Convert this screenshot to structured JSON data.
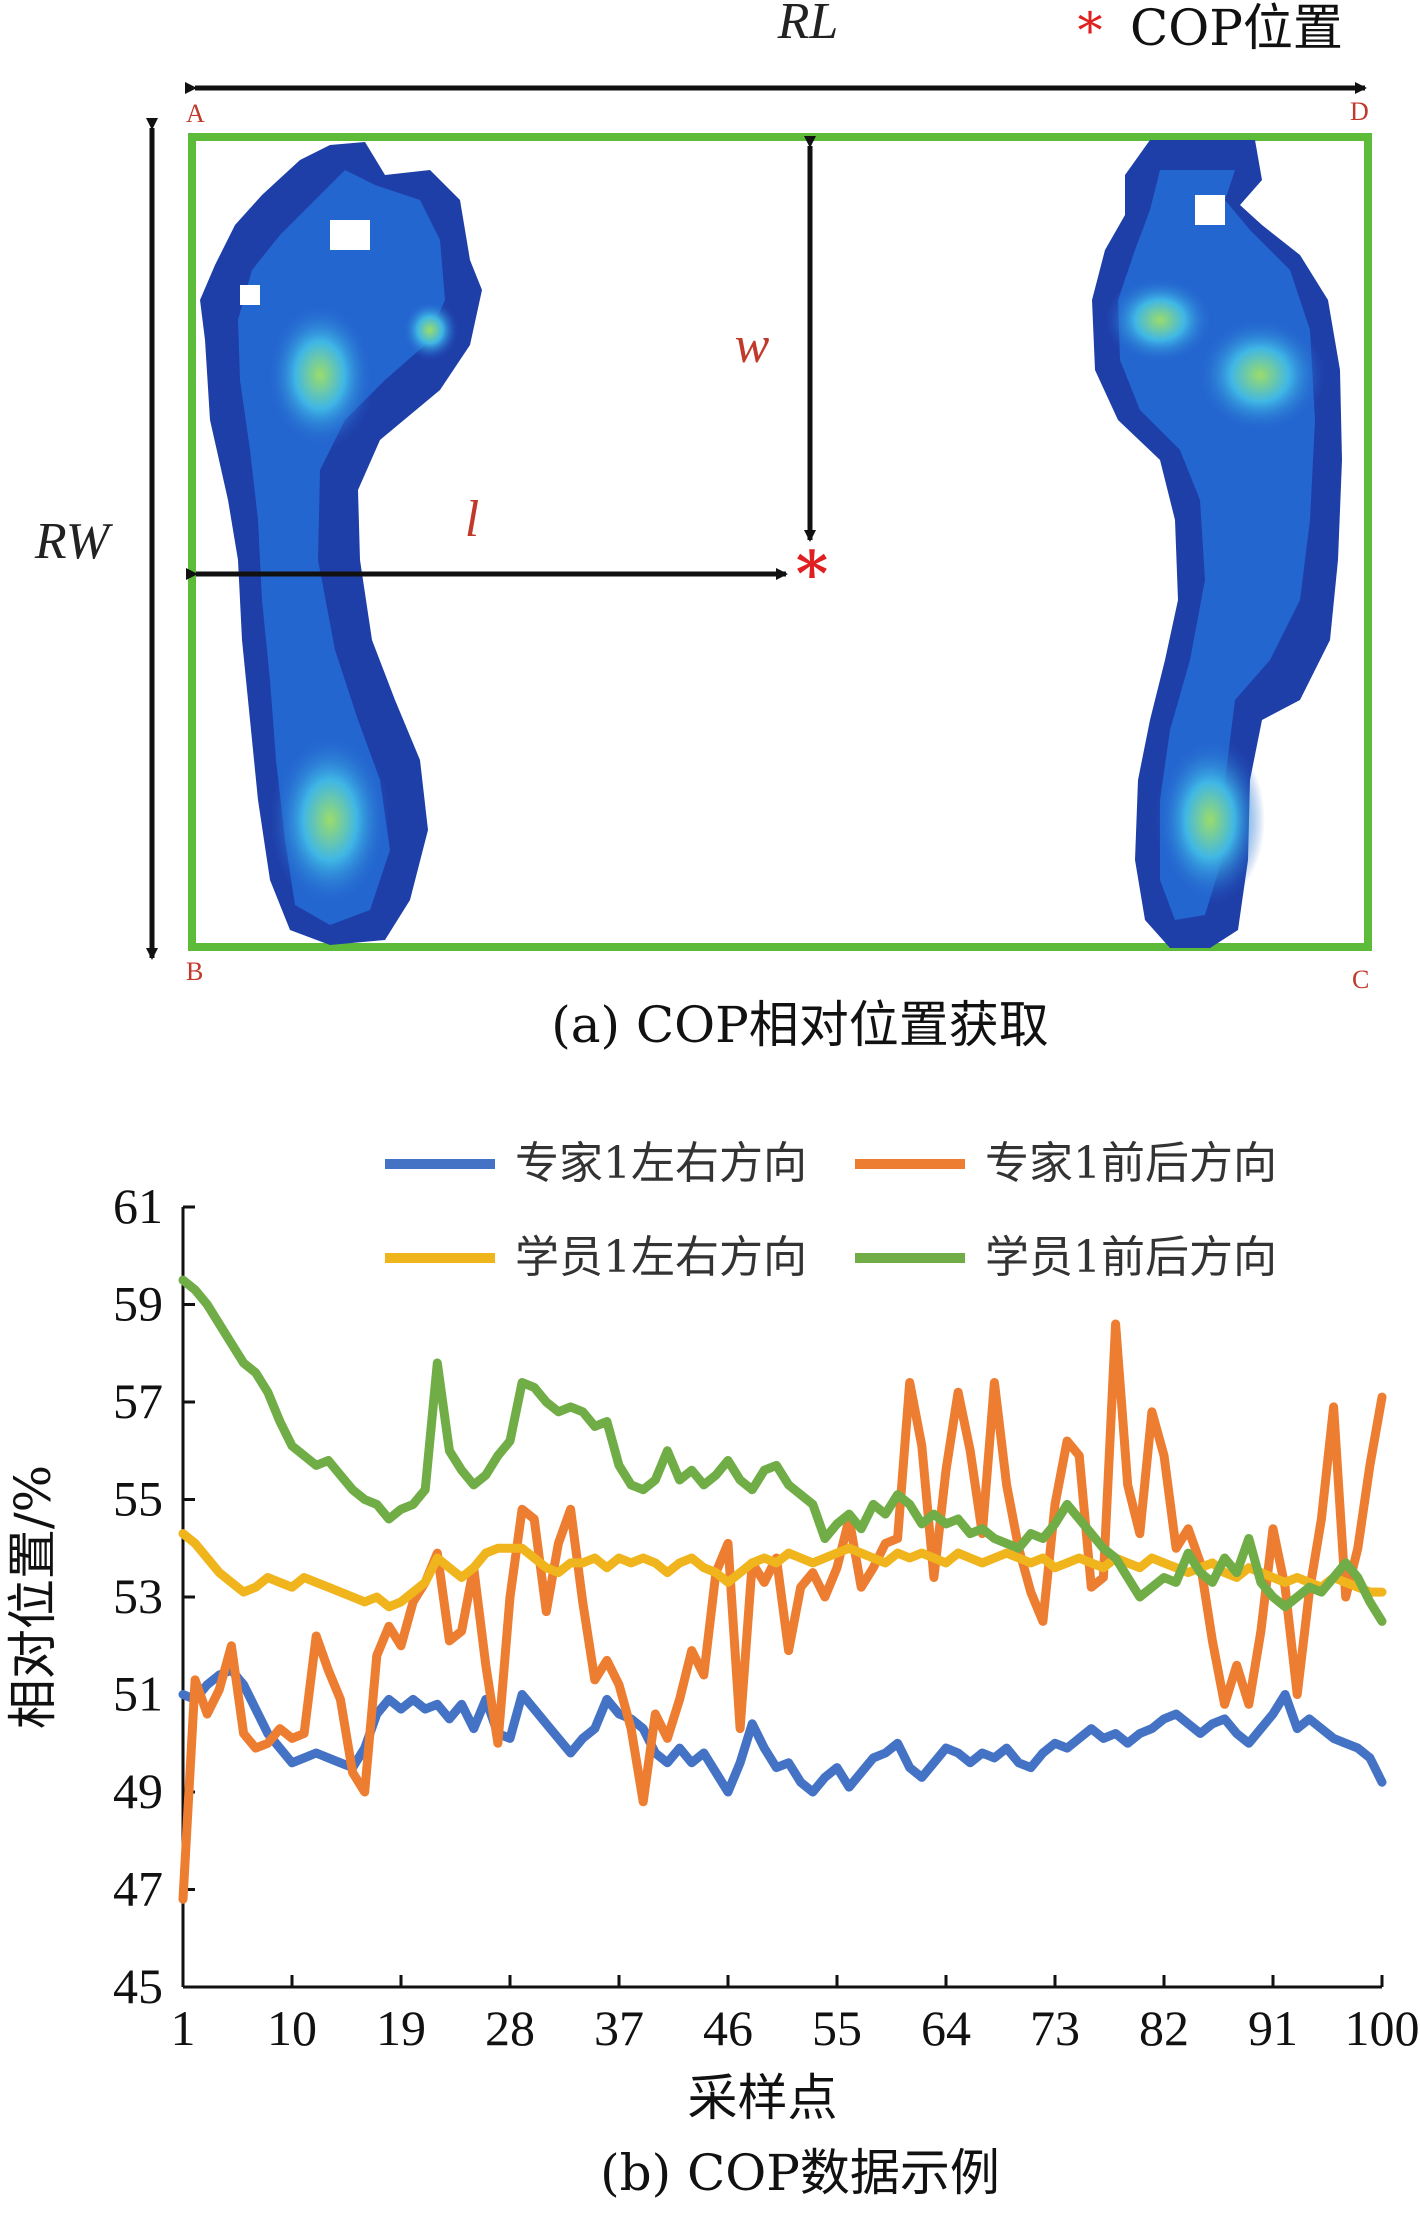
{
  "panel_a": {
    "caption": "(a) COP相对位置获取",
    "label_RL": "RL",
    "label_RW": "RW",
    "label_w": "w",
    "label_l": "l",
    "legend_marker": "*",
    "legend_text": "COP位置",
    "corners": {
      "A": "A",
      "B": "B",
      "C": "C",
      "D": "D"
    },
    "colors": {
      "rect": "#5dbb3a",
      "cop": "#e02020",
      "label": "#c0392b"
    }
  },
  "panel_b": {
    "caption": "(b) COP数据示例"
  },
  "chart_data": {
    "type": "line",
    "title": "",
    "xlabel": "采样点",
    "ylabel": "相对位置/%",
    "xlim": [
      1,
      100
    ],
    "ylim": [
      45,
      61
    ],
    "xticks": [
      1,
      10,
      19,
      28,
      37,
      46,
      55,
      64,
      73,
      82,
      91,
      100
    ],
    "yticks": [
      45,
      47,
      49,
      51,
      53,
      55,
      57,
      59,
      61
    ],
    "legend_position": "top",
    "series": [
      {
        "name": "专家1左右方向",
        "color": "#4472c4",
        "values": [
          51.0,
          50.9,
          51.2,
          51.4,
          51.5,
          51.2,
          50.7,
          50.2,
          49.9,
          49.6,
          49.7,
          49.8,
          49.7,
          49.6,
          49.5,
          49.9,
          50.6,
          50.9,
          50.7,
          50.9,
          50.7,
          50.8,
          50.5,
          50.8,
          50.3,
          50.9,
          50.2,
          50.1,
          51.0,
          50.7,
          50.4,
          50.1,
          49.8,
          50.1,
          50.3,
          50.9,
          50.6,
          50.5,
          50.3,
          49.8,
          49.6,
          49.9,
          49.6,
          49.8,
          49.4,
          49.0,
          49.6,
          50.4,
          49.9,
          49.5,
          49.6,
          49.2,
          49.0,
          49.3,
          49.5,
          49.1,
          49.4,
          49.7,
          49.8,
          50.0,
          49.5,
          49.3,
          49.6,
          49.9,
          49.8,
          49.6,
          49.8,
          49.7,
          49.9,
          49.6,
          49.5,
          49.8,
          50.0,
          49.9,
          50.1,
          50.3,
          50.1,
          50.2,
          50.0,
          50.2,
          50.3,
          50.5,
          50.6,
          50.4,
          50.2,
          50.4,
          50.5,
          50.2,
          50.0,
          50.3,
          50.6,
          51.0,
          50.3,
          50.5,
          50.3,
          50.1,
          50.0,
          49.9,
          49.7,
          49.2
        ],
        "values_note": ""
      },
      {
        "name": "专家1前后方向",
        "color": "#ed7d31",
        "values": [
          46.8,
          51.3,
          50.6,
          51.1,
          52.0,
          50.2,
          49.9,
          50.0,
          50.3,
          50.1,
          50.2,
          52.2,
          51.5,
          50.9,
          49.4,
          49.0,
          51.8,
          52.4,
          52.0,
          52.9,
          53.3,
          53.9,
          52.1,
          52.3,
          53.6,
          51.6,
          50.0,
          53.0,
          54.8,
          54.6,
          52.7,
          54.1,
          54.8,
          52.9,
          51.3,
          51.7,
          51.2,
          50.3,
          48.8,
          50.6,
          50.1,
          50.9,
          51.9,
          51.4,
          53.5,
          54.1,
          50.3,
          53.7,
          53.3,
          53.8,
          51.9,
          53.2,
          53.5,
          53.0,
          53.6,
          54.6,
          53.2,
          53.6,
          54.1,
          54.2,
          57.4,
          56.1,
          53.4,
          55.6,
          57.2,
          56.0,
          54.3,
          57.4,
          55.3,
          54.0,
          53.1,
          52.5,
          54.9,
          56.2,
          55.9,
          53.2,
          53.4,
          58.6,
          55.3,
          54.3,
          56.8,
          55.9,
          54.0,
          54.4,
          53.7,
          52.1,
          50.8,
          51.6,
          50.8,
          52.3,
          54.4,
          53.2,
          51.0,
          53.1,
          54.6,
          56.9,
          53.0,
          54.0,
          55.7,
          57.1
        ],
        "values_note": ""
      },
      {
        "name": "学员1左右方向",
        "color": "#f0b41c",
        "values": [
          54.3,
          54.1,
          53.8,
          53.5,
          53.3,
          53.1,
          53.2,
          53.4,
          53.3,
          53.2,
          53.4,
          53.3,
          53.2,
          53.1,
          53.0,
          52.9,
          53.0,
          52.8,
          52.9,
          53.1,
          53.3,
          53.8,
          53.6,
          53.4,
          53.6,
          53.9,
          54.0,
          54.0,
          54.0,
          53.8,
          53.6,
          53.5,
          53.7,
          53.7,
          53.8,
          53.6,
          53.8,
          53.7,
          53.8,
          53.7,
          53.5,
          53.7,
          53.8,
          53.6,
          53.5,
          53.3,
          53.5,
          53.7,
          53.8,
          53.7,
          53.9,
          53.8,
          53.7,
          53.8,
          53.9,
          54.0,
          53.9,
          53.8,
          53.7,
          53.9,
          53.8,
          53.9,
          53.8,
          53.7,
          53.9,
          53.8,
          53.7,
          53.8,
          53.9,
          53.8,
          53.7,
          53.8,
          53.6,
          53.7,
          53.8,
          53.7,
          53.6,
          53.8,
          53.7,
          53.6,
          53.8,
          53.7,
          53.6,
          53.5,
          53.6,
          53.7,
          53.5,
          53.4,
          53.6,
          53.5,
          53.4,
          53.3,
          53.4,
          53.3,
          53.2,
          53.4,
          53.3,
          53.2,
          53.1,
          53.1
        ],
        "values_note": ""
      },
      {
        "name": "学员1前后方向",
        "color": "#70ad47",
        "values": [
          59.5,
          59.3,
          59.0,
          58.6,
          58.2,
          57.8,
          57.6,
          57.2,
          56.6,
          56.1,
          55.9,
          55.7,
          55.8,
          55.5,
          55.2,
          55.0,
          54.9,
          54.6,
          54.8,
          54.9,
          55.2,
          57.8,
          56.0,
          55.6,
          55.3,
          55.5,
          55.9,
          56.2,
          57.4,
          57.3,
          57.0,
          56.8,
          56.9,
          56.8,
          56.5,
          56.6,
          55.7,
          55.3,
          55.2,
          55.4,
          56.0,
          55.4,
          55.6,
          55.3,
          55.5,
          55.8,
          55.4,
          55.2,
          55.6,
          55.7,
          55.3,
          55.1,
          54.9,
          54.2,
          54.5,
          54.7,
          54.4,
          54.9,
          54.7,
          55.1,
          54.9,
          54.5,
          54.7,
          54.5,
          54.6,
          54.3,
          54.4,
          54.2,
          54.1,
          54.0,
          54.3,
          54.2,
          54.5,
          54.9,
          54.6,
          54.3,
          54.0,
          53.8,
          53.4,
          53.0,
          53.2,
          53.4,
          53.3,
          53.9,
          53.5,
          53.3,
          53.8,
          53.5,
          54.2,
          53.3,
          53.0,
          52.8,
          53.0,
          53.2,
          53.1,
          53.4,
          53.7,
          53.4,
          52.9,
          52.5
        ],
        "values_note": ""
      }
    ]
  }
}
